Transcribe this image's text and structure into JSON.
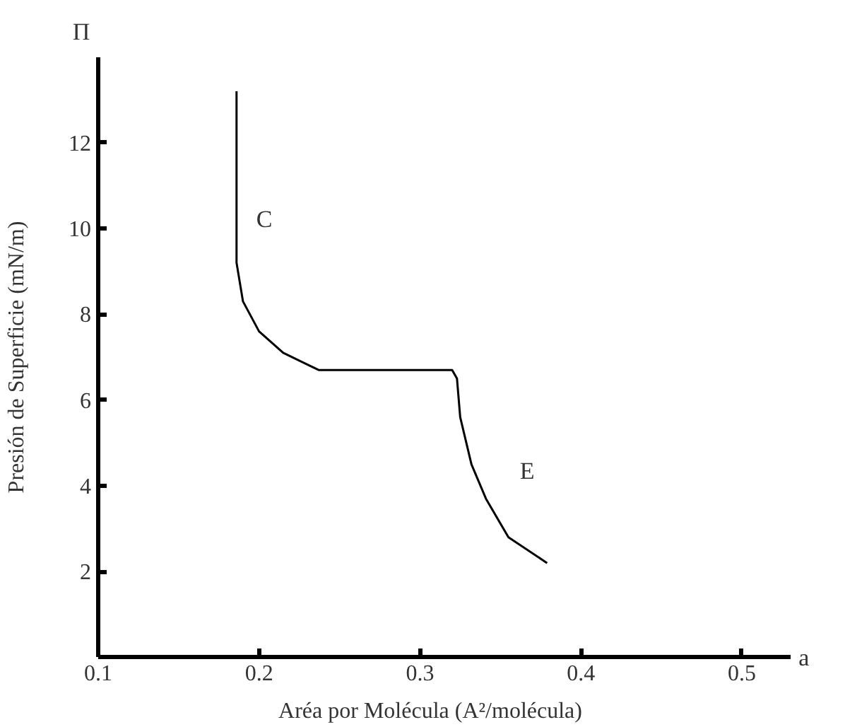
{
  "chart_data": {
    "type": "line",
    "xlabel": "Aréa por Molécula (A²/molécula)",
    "ylabel": "Presión de Superficie (mN/m)",
    "x": [
      0.186,
      0.186,
      0.19,
      0.2,
      0.215,
      0.237,
      0.32,
      0.323,
      0.325,
      0.332,
      0.341,
      0.355,
      0.379
    ],
    "series": [
      {
        "color": "#000000",
        "values": [
          13.2,
          9.2,
          8.3,
          7.6,
          7.1,
          6.7,
          6.7,
          6.5,
          5.6,
          4.5,
          3.7,
          2.8,
          2.2
        ]
      }
    ],
    "xlim": [
      0.1,
      0.53
    ],
    "ylim": [
      0,
      14
    ],
    "xticks": [
      0.1,
      0.2,
      0.3,
      0.4,
      0.5
    ],
    "yticks": [
      {
        "value": 2,
        "label": "2"
      },
      {
        "value": 4,
        "label": "4"
      },
      {
        "value": 6,
        "label": "6"
      },
      {
        "value": 8,
        "label": "8"
      },
      {
        "value": 10,
        "label": "10"
      },
      {
        "value": 12,
        "label": "12"
      }
    ],
    "grid": false,
    "marker": "none",
    "line_style": "solid",
    "annotations": [
      "C",
      "E",
      "Π",
      "a"
    ]
  }
}
